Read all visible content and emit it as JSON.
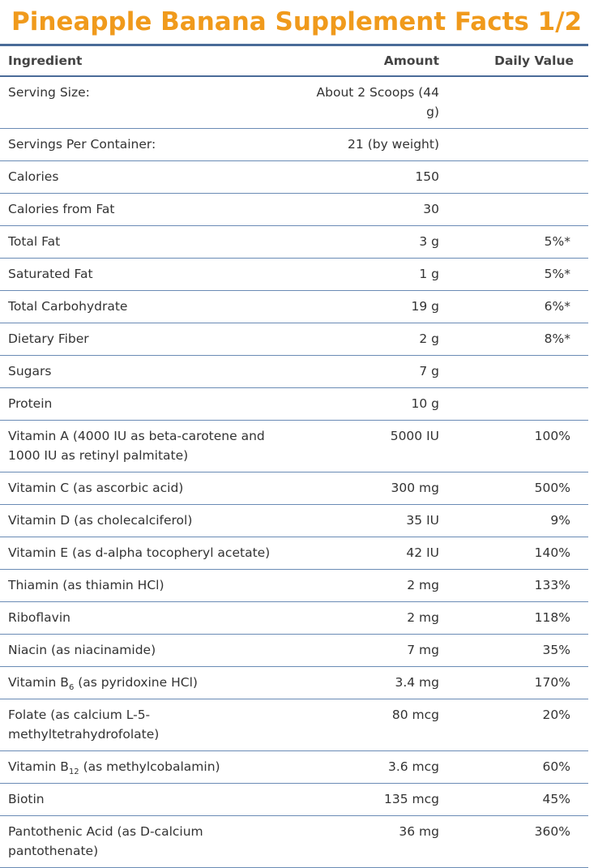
{
  "title": "Pineapple Banana Supplement Facts 1/2",
  "table": {
    "header": {
      "ingredient": "Ingredient",
      "amount": "Amount",
      "daily_value": "Daily Value"
    },
    "rows": [
      {
        "ingredient": "Serving Size:",
        "amount": "About 2 Scoops (44 g)"
      },
      {
        "ingredient": "Servings Per Container:",
        "amount": "21 (by weight)"
      },
      {
        "ingredient": "Calories",
        "amount": "150"
      },
      {
        "ingredient": "Calories from Fat",
        "amount": "30"
      },
      {
        "ingredient": "Total Fat",
        "amount": "3 g",
        "daily_value": "5%*"
      },
      {
        "ingredient": "Saturated Fat",
        "amount": "1 g",
        "daily_value": "5%*"
      },
      {
        "ingredient": "Total Carbohydrate",
        "amount": "19 g",
        "daily_value": "6%*"
      },
      {
        "ingredient": "Dietary Fiber",
        "amount": "2 g",
        "daily_value": "8%*"
      },
      {
        "ingredient": "Sugars",
        "amount": "7 g"
      },
      {
        "ingredient": "Protein",
        "amount": "10 g"
      },
      {
        "ingredient": "Vitamin A (4000 IU as beta-carotene and 1000 IU as retinyl palmitate)",
        "amount": "5000 IU",
        "daily_value": "100%"
      },
      {
        "ingredient": "Vitamin C (as ascorbic acid)",
        "amount": "300 mg",
        "daily_value": "500%"
      },
      {
        "ingredient": "Vitamin D (as cholecalciferol)",
        "amount": "35 IU",
        "daily_value": "9%"
      },
      {
        "ingredient": "Vitamin E (as d-alpha tocopheryl acetate)",
        "amount": "42 IU",
        "daily_value": "140%"
      },
      {
        "ingredient": "Thiamin (as thiamin HCl)",
        "amount": "2 mg",
        "daily_value": "133%"
      },
      {
        "ingredient": "Riboflavin",
        "amount": "2 mg",
        "daily_value": "118%"
      },
      {
        "ingredient": "Niacin (as niacinamide)",
        "amount": "7 mg",
        "daily_value": "35%"
      },
      {
        "ingredient": {
          "before": "Vitamin B",
          "sub": "6",
          "after": " (as pyridoxine HCl)"
        },
        "amount": "3.4 mg",
        "daily_value": "170%"
      },
      {
        "ingredient": "Folate (as calcium L-5-methyltetrahydrofolate)",
        "amount": "80 mcg",
        "daily_value": "20%"
      },
      {
        "ingredient": {
          "before": "Vitamin B",
          "sub": "12",
          "after": " (as methylcobalamin)"
        },
        "amount": "3.6 mcg",
        "daily_value": "60%"
      },
      {
        "ingredient": "Biotin",
        "amount": "135 mcg",
        "daily_value": "45%"
      },
      {
        "ingredient": "Pantothenic Acid (as D-calcium pantothenate)",
        "amount": "36 mg",
        "daily_value": "360%"
      }
    ]
  }
}
